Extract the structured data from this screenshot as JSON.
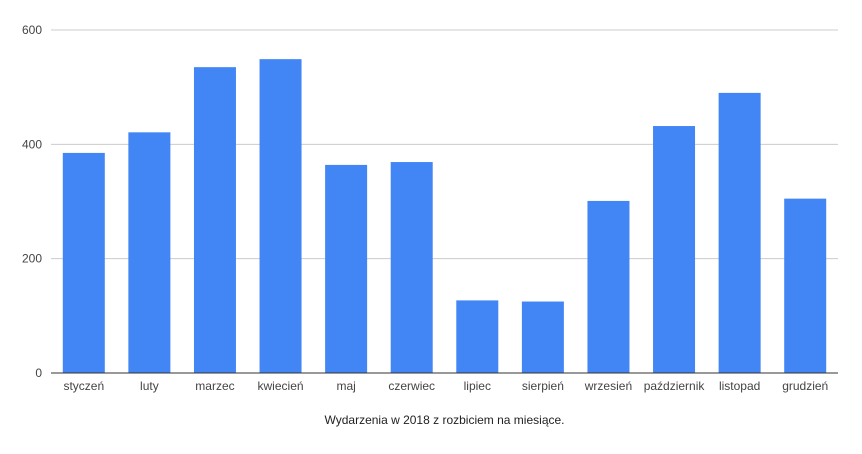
{
  "chart_data": {
    "type": "bar",
    "categories": [
      "styczeń",
      "luty",
      "marzec",
      "kwiecień",
      "maj",
      "czerwiec",
      "lipiec",
      "sierpień",
      "wrzesień",
      "październik",
      "listopad",
      "grudzień"
    ],
    "values": [
      385,
      421,
      535,
      549,
      364,
      369,
      127,
      125,
      301,
      432,
      490,
      305
    ],
    "title": "",
    "xlabel": "Wydarzenia w 2018 z rozbiciem na miesiące.",
    "ylabel": "",
    "ylim": [
      0,
      600
    ],
    "yticks": [
      0,
      200,
      400,
      600
    ],
    "grid": true,
    "legend": "none",
    "bar_color": "#4285f4",
    "grid_color": "#cccccc",
    "axis_color": "#333333",
    "label_color": "#444444"
  }
}
